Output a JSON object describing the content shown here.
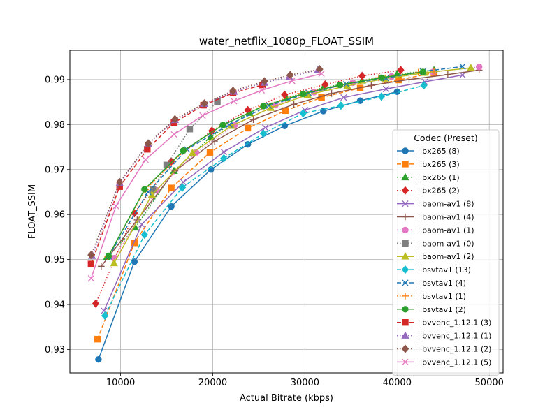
{
  "chart_data": {
    "type": "line",
    "title": "water_netflix_1080p_FLOAT_SSIM",
    "xlabel": "Actual Bitrate (kbps)",
    "ylabel": "FLOAT_SSIM",
    "xlim": [
      4500,
      51500
    ],
    "ylim": [
      0.9248,
      0.9965
    ],
    "xticks": [
      10000,
      20000,
      30000,
      40000,
      50000
    ],
    "xtick_labels": [
      "10000",
      "20000",
      "30000",
      "40000",
      "50000"
    ],
    "yticks": [
      0.93,
      0.94,
      0.95,
      0.96,
      0.97,
      0.98,
      0.99
    ],
    "ytick_labels": [
      "0.93",
      "0.94",
      "0.95",
      "0.96",
      "0.97",
      "0.98",
      "0.99"
    ],
    "grid": true,
    "legend": {
      "title": "Codec (Preset)",
      "placement": "center-right"
    },
    "series": [
      {
        "name": "libx265 (8)",
        "color": "#1f77b4",
        "marker": "circle",
        "linestyle": "solid",
        "x": [
          7600,
          11500,
          15500,
          19800,
          23800,
          27800,
          32000,
          36000,
          40000
        ],
        "y": [
          0.9278,
          0.9495,
          0.9618,
          0.97,
          0.9756,
          0.9797,
          0.983,
          0.9853,
          0.9873
        ]
      },
      {
        "name": "libx265 (3)",
        "color": "#ff7f0e",
        "marker": "square",
        "linestyle": "dashed",
        "x": [
          7500,
          11500,
          15500,
          19700,
          23800,
          27900,
          31800,
          36000,
          40200,
          44000
        ],
        "y": [
          0.9323,
          0.9537,
          0.9659,
          0.9738,
          0.9792,
          0.9831,
          0.986,
          0.9881,
          0.9899,
          0.9915
        ]
      },
      {
        "name": "libx265 (1)",
        "color": "#2ca02c",
        "marker": "triangle",
        "linestyle": "dotted",
        "x": [
          8500,
          11600,
          15800,
          19800,
          24000,
          28000,
          32000,
          36200,
          40000,
          44000
        ],
        "y": [
          0.9505,
          0.9571,
          0.9697,
          0.9773,
          0.9826,
          0.9859,
          0.9882,
          0.9898,
          0.9912,
          0.9921
        ]
      },
      {
        "name": "libx265 (2)",
        "color": "#d62728",
        "marker": "diamond",
        "linestyle": "dotted",
        "x": [
          7300,
          11500,
          15500,
          19900,
          23800,
          27800,
          32200,
          36200,
          40400
        ],
        "y": [
          0.9402,
          0.9603,
          0.9718,
          0.9786,
          0.9832,
          0.9866,
          0.9889,
          0.9908,
          0.9921
        ]
      },
      {
        "name": "libaom-av1 (8)",
        "color": "#9467bd",
        "marker": "x",
        "linestyle": "solid",
        "x": [
          8200,
          12300,
          16800,
          21200,
          25700,
          30000,
          34200,
          38800,
          43000,
          47100
        ],
        "y": [
          0.9386,
          0.9578,
          0.9672,
          0.9739,
          0.9793,
          0.9832,
          0.986,
          0.9879,
          0.9895,
          0.991
        ]
      },
      {
        "name": "libaom-av1 (4)",
        "color": "#8c564b",
        "marker": "plus",
        "linestyle": "solid",
        "x": [
          7900,
          11800,
          15900,
          20200,
          24400,
          28800,
          32900,
          37200,
          41300,
          45500,
          48900
        ],
        "y": [
          0.9485,
          0.9588,
          0.9697,
          0.9763,
          0.9811,
          0.9845,
          0.9869,
          0.9887,
          0.99,
          0.9911,
          0.9921
        ]
      },
      {
        "name": "libaom-av1 (1)",
        "color": "#e377c2",
        "marker": "circle",
        "linestyle": "dotted",
        "x": [
          9300,
          13900,
          18200,
          22400,
          26800,
          31000,
          35200,
          39400,
          43900,
          48900
        ],
        "y": [
          0.9503,
          0.9654,
          0.9738,
          0.9799,
          0.9843,
          0.9872,
          0.9893,
          0.9907,
          0.9917,
          0.9928
        ]
      },
      {
        "name": "libaom-av1 (0)",
        "color": "#7f7f7f",
        "marker": "square",
        "linestyle": "dotted",
        "x": [
          13500,
          15000,
          17500,
          20500
        ],
        "y": [
          0.9655,
          0.971,
          0.979,
          0.9851
        ]
      },
      {
        "name": "libaom-av1 (2)",
        "color": "#bcbd22",
        "marker": "triangle",
        "linestyle": "solid",
        "x": [
          9300,
          13400,
          17800,
          22000,
          26300,
          30300,
          34600,
          38700,
          43000,
          48000
        ],
        "y": [
          0.9492,
          0.9644,
          0.9737,
          0.9797,
          0.9837,
          0.9866,
          0.9886,
          0.9902,
          0.9915,
          0.9926
        ]
      },
      {
        "name": "libsvtav1 (13)",
        "color": "#17becf",
        "marker": "diamond",
        "linestyle": "dashed",
        "x": [
          8300,
          12600,
          16700,
          21200,
          25500,
          29800,
          33900,
          38300,
          42900
        ],
        "y": [
          0.9375,
          0.9555,
          0.966,
          0.9725,
          0.978,
          0.9825,
          0.9842,
          0.9862,
          0.9887
        ]
      },
      {
        "name": "libsvtav1 (4)",
        "color": "#1f77b4",
        "marker": "x",
        "linestyle": "dashed",
        "x": [
          8700,
          13000,
          17200,
          21800,
          26100,
          30400,
          34500,
          38800,
          42800,
          47100
        ],
        "y": [
          0.9507,
          0.965,
          0.9745,
          0.98,
          0.9842,
          0.987,
          0.989,
          0.9903,
          0.9918,
          0.9929
        ]
      },
      {
        "name": "libsvtav1 (1)",
        "color": "#ff7f0e",
        "marker": "plus",
        "linestyle": "dotted",
        "x": [
          8600,
          12700,
          16900,
          21100,
          25300,
          29500,
          33900,
          38000,
          42300,
          44000
        ],
        "y": [
          0.9506,
          0.9655,
          0.9742,
          0.9799,
          0.984,
          0.9869,
          0.9888,
          0.9904,
          0.9916,
          0.9919
        ]
      },
      {
        "name": "libsvtav1 (2)",
        "color": "#2ca02c",
        "marker": "circle",
        "linestyle": "solid",
        "x": [
          8700,
          12600,
          16800,
          21100,
          25500,
          29800,
          33800,
          38300,
          42800
        ],
        "y": [
          0.9508,
          0.9656,
          0.9742,
          0.9799,
          0.9841,
          0.9868,
          0.9888,
          0.9904,
          0.9917
        ]
      },
      {
        "name": "libvvenc_1.12.1 (3)",
        "color": "#d62728",
        "marker": "square",
        "linestyle": "dashed",
        "x": [
          6800,
          9900,
          12900,
          15800,
          19000,
          22200,
          25400
        ],
        "y": [
          0.949,
          0.9662,
          0.9745,
          0.9804,
          0.9843,
          0.987,
          0.9888
        ]
      },
      {
        "name": "libvvenc_1.12.1 (1)",
        "color": "#9467bd",
        "marker": "triangle",
        "linestyle": "dotted",
        "x": [
          6900,
          9900,
          13000,
          15900,
          19100,
          22300,
          25600,
          28300,
          31400
        ],
        "y": [
          0.9508,
          0.967,
          0.9757,
          0.981,
          0.9846,
          0.9873,
          0.9893,
          0.9906,
          0.9921
        ]
      },
      {
        "name": "libvvenc_1.12.1 (2)",
        "color": "#8c564b",
        "marker": "diamond",
        "linestyle": "dotted",
        "x": [
          6800,
          9900,
          13000,
          15900,
          19100,
          22200,
          25600,
          28400,
          31600
        ],
        "y": [
          0.951,
          0.9672,
          0.9758,
          0.9812,
          0.9847,
          0.9875,
          0.9896,
          0.991,
          0.9923
        ]
      },
      {
        "name": "libvvenc_1.12.1 (5)",
        "color": "#e377c2",
        "marker": "x",
        "linestyle": "solid",
        "x": [
          6800,
          9500,
          12700,
          15800,
          18900,
          22300,
          25300,
          28600,
          31800
        ],
        "y": [
          0.9458,
          0.9619,
          0.9722,
          0.9778,
          0.982,
          0.9852,
          0.9876,
          0.9897,
          0.9913
        ]
      }
    ]
  }
}
